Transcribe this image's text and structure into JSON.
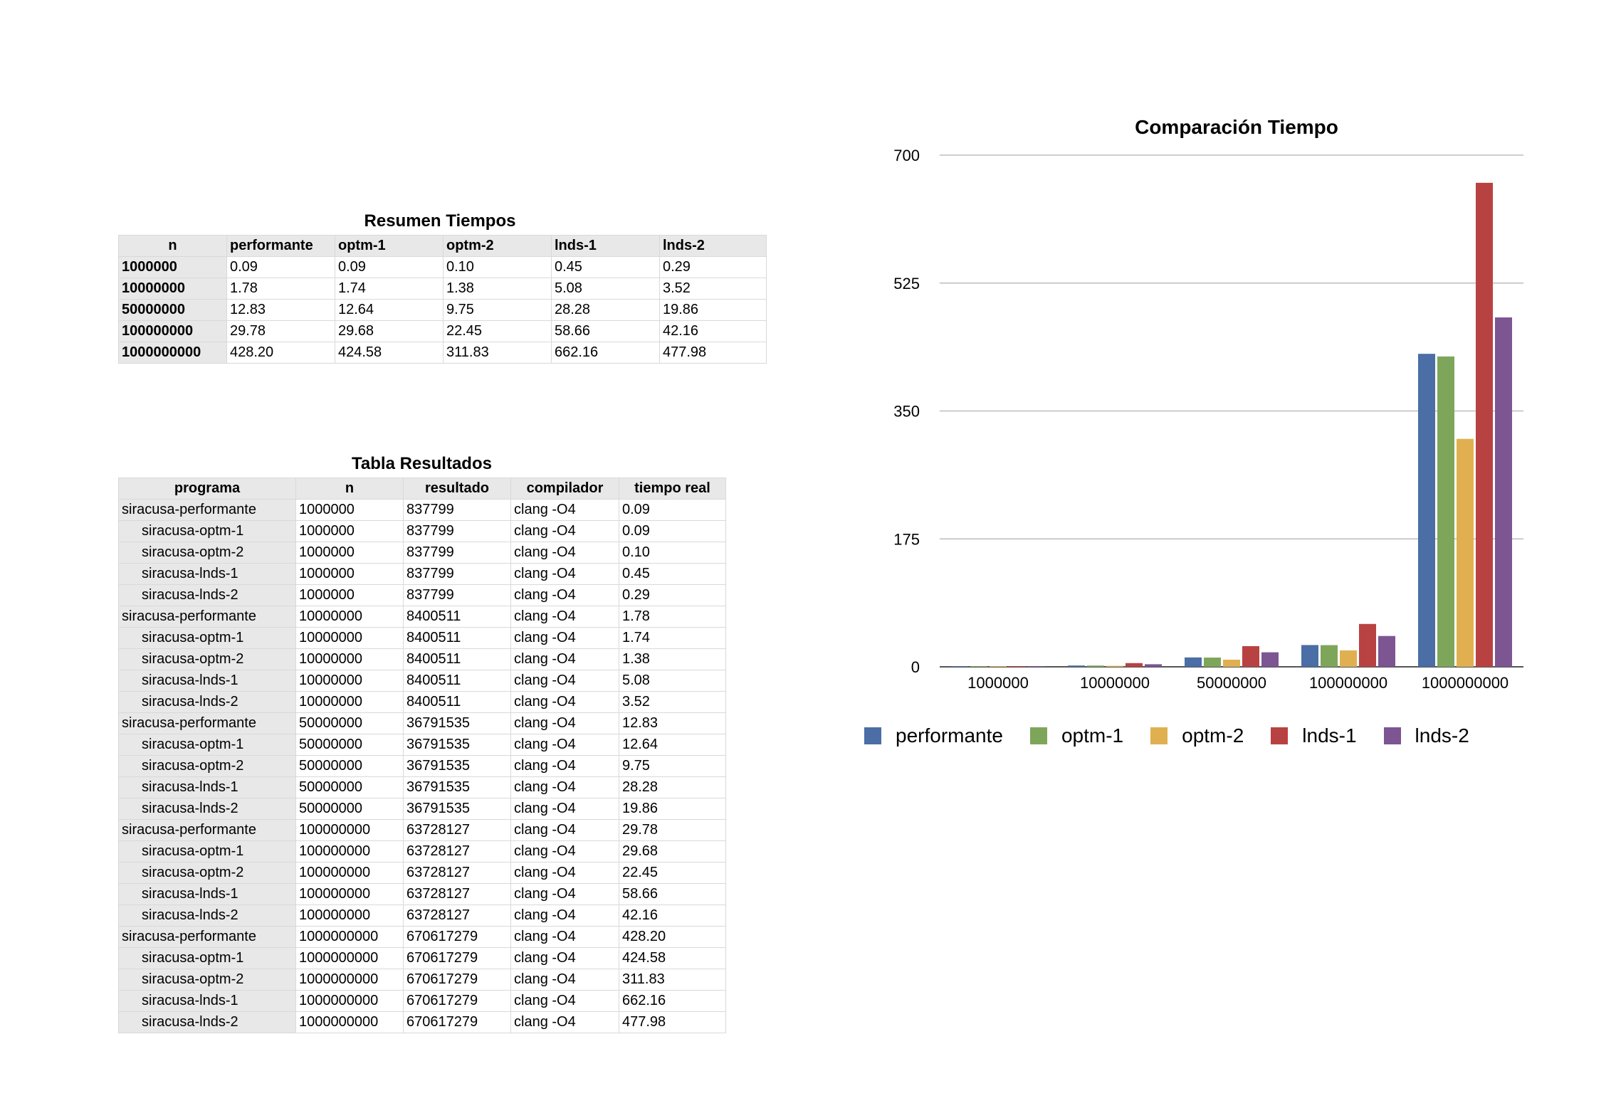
{
  "summary": {
    "title": "Resumen Tiempos",
    "headers": [
      "n",
      "performante",
      "optm-1",
      "optm-2",
      "lnds-1",
      "lnds-2"
    ],
    "rows": [
      [
        "1000000",
        "0.09",
        "0.09",
        "0.10",
        "0.45",
        "0.29"
      ],
      [
        "10000000",
        "1.78",
        "1.74",
        "1.38",
        "5.08",
        "3.52"
      ],
      [
        "50000000",
        "12.83",
        "12.64",
        "9.75",
        "28.28",
        "19.86"
      ],
      [
        "100000000",
        "29.78",
        "29.68",
        "22.45",
        "58.66",
        "42.16"
      ],
      [
        "1000000000",
        "428.20",
        "424.58",
        "311.83",
        "662.16",
        "477.98"
      ]
    ]
  },
  "results": {
    "title": "Tabla Resultados",
    "headers": [
      "programa",
      "n",
      "resultado",
      "compilador",
      "tiempo real"
    ],
    "rows": [
      [
        "siracusa-performante",
        "1000000",
        "837799",
        "clang -O4",
        "0.09"
      ],
      [
        "siracusa-optm-1",
        "1000000",
        "837799",
        "clang -O4",
        "0.09"
      ],
      [
        "siracusa-optm-2",
        "1000000",
        "837799",
        "clang -O4",
        "0.10"
      ],
      [
        "siracusa-lnds-1",
        "1000000",
        "837799",
        "clang -O4",
        "0.45"
      ],
      [
        "siracusa-lnds-2",
        "1000000",
        "837799",
        "clang -O4",
        "0.29"
      ],
      [
        "siracusa-performante",
        "10000000",
        "8400511",
        "clang -O4",
        "1.78"
      ],
      [
        "siracusa-optm-1",
        "10000000",
        "8400511",
        "clang -O4",
        "1.74"
      ],
      [
        "siracusa-optm-2",
        "10000000",
        "8400511",
        "clang -O4",
        "1.38"
      ],
      [
        "siracusa-lnds-1",
        "10000000",
        "8400511",
        "clang -O4",
        "5.08"
      ],
      [
        "siracusa-lnds-2",
        "10000000",
        "8400511",
        "clang -O4",
        "3.52"
      ],
      [
        "siracusa-performante",
        "50000000",
        "36791535",
        "clang -O4",
        "12.83"
      ],
      [
        "siracusa-optm-1",
        "50000000",
        "36791535",
        "clang -O4",
        "12.64"
      ],
      [
        "siracusa-optm-2",
        "50000000",
        "36791535",
        "clang -O4",
        "9.75"
      ],
      [
        "siracusa-lnds-1",
        "50000000",
        "36791535",
        "clang -O4",
        "28.28"
      ],
      [
        "siracusa-lnds-2",
        "50000000",
        "36791535",
        "clang -O4",
        "19.86"
      ],
      [
        "siracusa-performante",
        "100000000",
        "63728127",
        "clang -O4",
        "29.78"
      ],
      [
        "siracusa-optm-1",
        "100000000",
        "63728127",
        "clang -O4",
        "29.68"
      ],
      [
        "siracusa-optm-2",
        "100000000",
        "63728127",
        "clang -O4",
        "22.45"
      ],
      [
        "siracusa-lnds-1",
        "100000000",
        "63728127",
        "clang -O4",
        "58.66"
      ],
      [
        "siracusa-lnds-2",
        "100000000",
        "63728127",
        "clang -O4",
        "42.16"
      ],
      [
        "siracusa-performante",
        "1000000000",
        "670617279",
        "clang -O4",
        "428.20"
      ],
      [
        "siracusa-optm-1",
        "1000000000",
        "670617279",
        "clang -O4",
        "424.58"
      ],
      [
        "siracusa-optm-2",
        "1000000000",
        "670617279",
        "clang -O4",
        "311.83"
      ],
      [
        "siracusa-lnds-1",
        "1000000000",
        "670617279",
        "clang -O4",
        "662.16"
      ],
      [
        "siracusa-lnds-2",
        "1000000000",
        "670617279",
        "clang -O4",
        "477.98"
      ]
    ]
  },
  "chart_data": {
    "type": "bar",
    "title": "Comparación Tiempo",
    "xlabel": "",
    "ylabel": "",
    "categories": [
      "1000000",
      "10000000",
      "50000000",
      "100000000",
      "1000000000"
    ],
    "ylim": [
      0,
      700
    ],
    "yticks": [
      0,
      175,
      350,
      525,
      700
    ],
    "grid": true,
    "legend_position": "bottom",
    "series": [
      {
        "name": "performante",
        "color": "#4a6ea5",
        "values": [
          0.09,
          1.78,
          12.83,
          29.78,
          428.2
        ]
      },
      {
        "name": "optm-1",
        "color": "#7ea65a",
        "values": [
          0.09,
          1.74,
          12.64,
          29.68,
          424.58
        ]
      },
      {
        "name": "optm-2",
        "color": "#e0b050",
        "values": [
          0.1,
          1.38,
          9.75,
          22.45,
          311.83
        ]
      },
      {
        "name": "lnds-1",
        "color": "#b84241",
        "values": [
          0.45,
          5.08,
          28.28,
          58.66,
          662.16
        ]
      },
      {
        "name": "lnds-2",
        "color": "#7c5592",
        "values": [
          0.29,
          3.52,
          19.86,
          42.16,
          477.98
        ]
      }
    ]
  }
}
